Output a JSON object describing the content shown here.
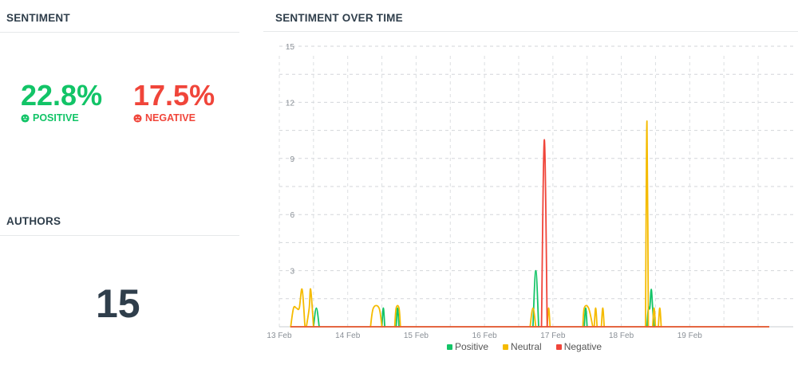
{
  "sentiment": {
    "title": "SENTIMENT",
    "positive": {
      "value": "22.8%",
      "label": "POSITIVE",
      "color": "#12c467",
      "icon": "smile-icon"
    },
    "negative": {
      "value": "17.5%",
      "label": "NEGATIVE",
      "color": "#f0453a",
      "icon": "frown-icon"
    }
  },
  "authors": {
    "title": "AUTHORS",
    "count": "15"
  },
  "chart_panel": {
    "title": "SENTIMENT OVER TIME"
  },
  "chart_data": {
    "type": "line",
    "title": "",
    "xlabel": "",
    "ylabel": "",
    "x_range": [
      "13 Feb 00:00",
      "20 Feb 03:00"
    ],
    "x_ticks": [
      "13 Feb",
      "14 Feb",
      "15 Feb",
      "16 Feb",
      "17 Feb",
      "18 Feb",
      "19 Feb"
    ],
    "y_ticks": [
      3,
      6,
      9,
      12,
      15
    ],
    "ylim": [
      0,
      15
    ],
    "grid": true,
    "legend_position": "bottom",
    "series": [
      {
        "name": "Positive",
        "color": "#12c467",
        "points": [
          [
            "13 Feb 12:00",
            0
          ],
          [
            "13 Feb 13:00",
            1
          ],
          [
            "13 Feb 14:00",
            0
          ],
          [
            "14 Feb 12:00",
            0
          ],
          [
            "14 Feb 12:30",
            1
          ],
          [
            "14 Feb 13:00",
            0
          ],
          [
            "14 Feb 17:00",
            0
          ],
          [
            "14 Feb 17:30",
            1
          ],
          [
            "14 Feb 18:00",
            0
          ],
          [
            "16 Feb 17:00",
            0
          ],
          [
            "16 Feb 18:00",
            3
          ],
          [
            "16 Feb 19:00",
            0
          ],
          [
            "17 Feb 11:00",
            0
          ],
          [
            "17 Feb 11:30",
            1
          ],
          [
            "17 Feb 12:00",
            0
          ],
          [
            "18 Feb 09:00",
            0
          ],
          [
            "18 Feb 09:30",
            1
          ],
          [
            "18 Feb 10:00",
            1
          ],
          [
            "18 Feb 10:30",
            2
          ],
          [
            "18 Feb 11:00",
            1
          ],
          [
            "18 Feb 11:30",
            0
          ]
        ]
      },
      {
        "name": "Neutral",
        "color": "#f5bb00",
        "points": [
          [
            "13 Feb 04:00",
            0
          ],
          [
            "13 Feb 05:00",
            1
          ],
          [
            "13 Feb 06:00",
            1
          ],
          [
            "13 Feb 07:00",
            1
          ],
          [
            "13 Feb 08:00",
            2
          ],
          [
            "13 Feb 09:00",
            0
          ],
          [
            "13 Feb 09:30",
            0
          ],
          [
            "13 Feb 10:30",
            1
          ],
          [
            "13 Feb 11:00",
            2
          ],
          [
            "13 Feb 12:00",
            0
          ],
          [
            "14 Feb 08:00",
            0
          ],
          [
            "14 Feb 09:00",
            1
          ],
          [
            "14 Feb 11:00",
            1
          ],
          [
            "14 Feb 12:00",
            0
          ],
          [
            "14 Feb 16:30",
            0
          ],
          [
            "14 Feb 17:00",
            1
          ],
          [
            "14 Feb 18:00",
            1
          ],
          [
            "14 Feb 18:30",
            0
          ],
          [
            "16 Feb 16:00",
            0
          ],
          [
            "16 Feb 17:00",
            1
          ],
          [
            "16 Feb 18:00",
            0
          ],
          [
            "16 Feb 22:00",
            0
          ],
          [
            "16 Feb 22:30",
            1
          ],
          [
            "16 Feb 23:00",
            0
          ],
          [
            "17 Feb 10:30",
            0
          ],
          [
            "17 Feb 11:00",
            1
          ],
          [
            "17 Feb 12:30",
            1
          ],
          [
            "17 Feb 14:00",
            0
          ],
          [
            "17 Feb 14:30",
            0
          ],
          [
            "17 Feb 15:00",
            1
          ],
          [
            "17 Feb 15:30",
            0
          ],
          [
            "17 Feb 17:00",
            0
          ],
          [
            "17 Feb 17:30",
            1
          ],
          [
            "17 Feb 18:00",
            0
          ],
          [
            "18 Feb 08:30",
            0
          ],
          [
            "18 Feb 09:00",
            11
          ],
          [
            "18 Feb 09:30",
            0
          ],
          [
            "18 Feb 11:00",
            0
          ],
          [
            "18 Feb 11:30",
            1
          ],
          [
            "18 Feb 12:00",
            0
          ],
          [
            "18 Feb 13:00",
            0
          ],
          [
            "18 Feb 13:30",
            1
          ],
          [
            "18 Feb 14:00",
            0
          ]
        ]
      },
      {
        "name": "Negative",
        "color": "#f0453a",
        "points": [
          [
            "16 Feb 20:00",
            0
          ],
          [
            "16 Feb 21:00",
            10
          ],
          [
            "16 Feb 22:00",
            0
          ]
        ]
      }
    ]
  }
}
